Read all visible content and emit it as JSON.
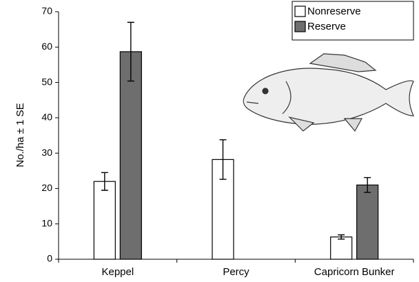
{
  "chart_data": {
    "type": "bar",
    "y_label": "No./ha ± 1 SE",
    "categories": [
      "Keppel",
      "Percy",
      "Capricorn Bunker"
    ],
    "series": [
      {
        "name": "Nonreserve",
        "color": "#ffffff",
        "values": [
          22,
          28.2,
          6.3
        ],
        "errors": [
          2.5,
          5.6,
          0.6
        ]
      },
      {
        "name": "Reserve",
        "color": "#6e6e6e",
        "values": [
          58.7,
          null,
          21
        ],
        "errors": [
          8.3,
          null,
          2.1
        ]
      }
    ],
    "ylim": [
      0,
      70
    ],
    "yticks": [
      0,
      10,
      20,
      30,
      40,
      50,
      60,
      70
    ],
    "legend": "upper right"
  }
}
